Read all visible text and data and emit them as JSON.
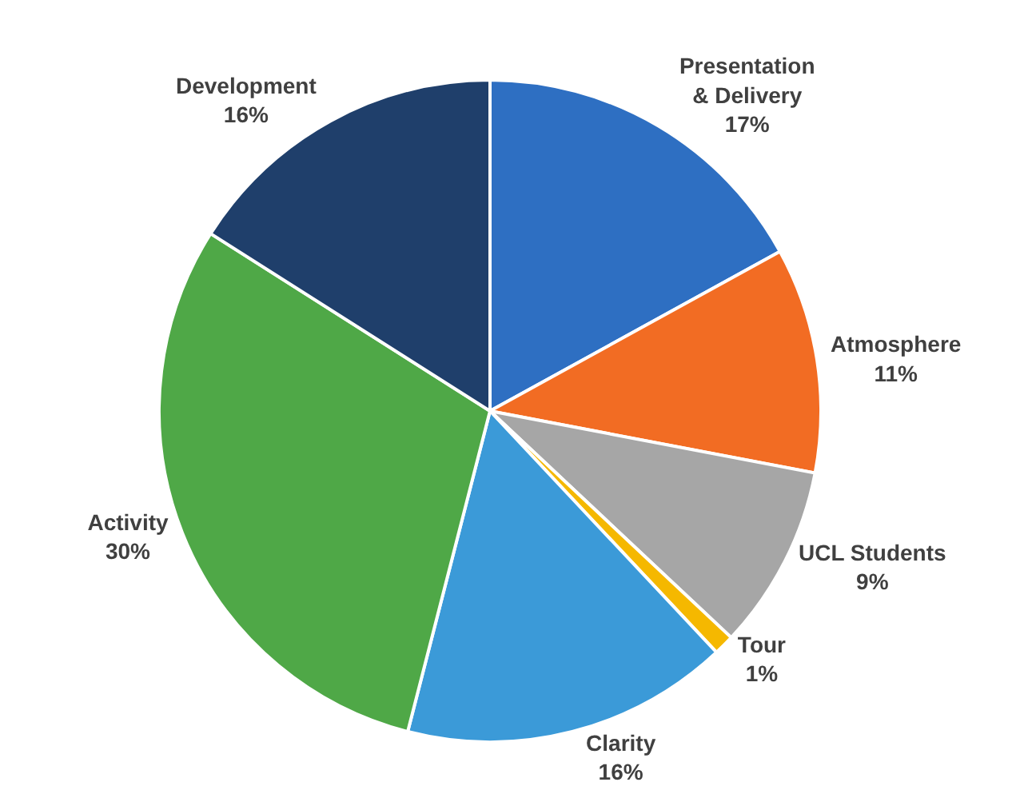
{
  "chart_data": {
    "type": "pie",
    "categories": [
      "Presentation & Delivery",
      "Atmosphere",
      "UCL Students",
      "Tour",
      "Clarity",
      "Activity",
      "Development"
    ],
    "values": [
      17,
      11,
      9,
      1,
      16,
      30,
      16
    ],
    "value_labels": [
      "17%",
      "11%",
      "9%",
      "1%",
      "16%",
      "30%",
      "16%"
    ],
    "colors": [
      "#2e6fc2",
      "#f26c23",
      "#a6a6a6",
      "#f5b800",
      "#3b9ad8",
      "#4fa847",
      "#1f3f6b"
    ],
    "legend": false
  }
}
